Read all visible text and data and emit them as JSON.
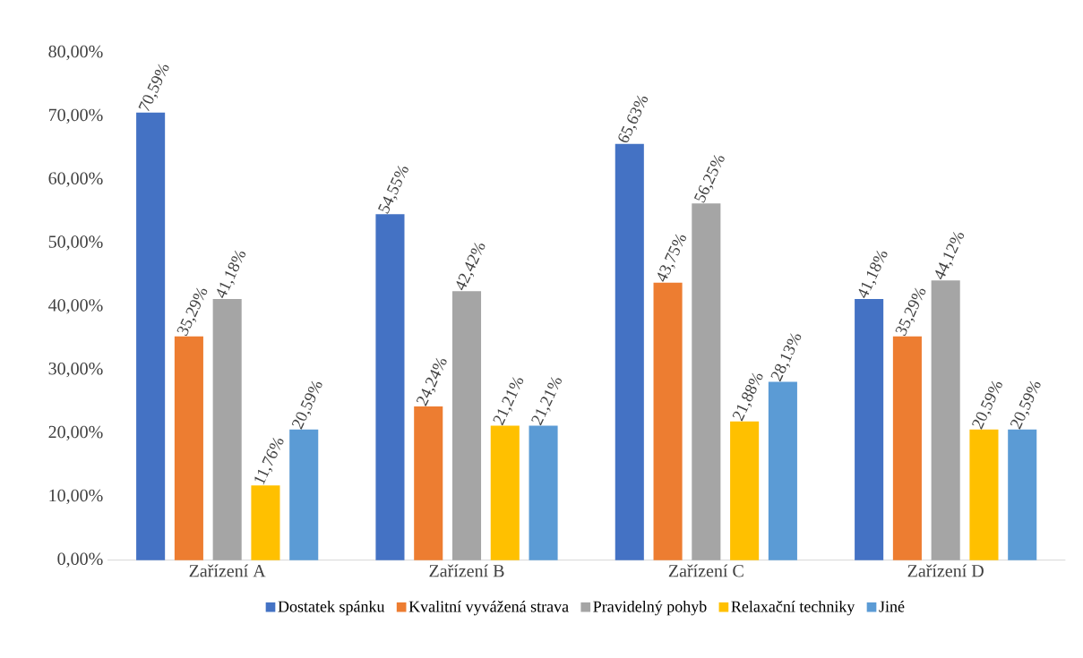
{
  "chart_data": {
    "type": "bar",
    "categories": [
      "Zařízení A",
      "Zařízení B",
      "Zařízení C",
      "Zařízení D"
    ],
    "series": [
      {
        "name": "Dostatek spánku",
        "color": "#4472c4",
        "values": [
          70.59,
          54.55,
          65.63,
          41.18
        ],
        "value_labels": [
          "70,59%",
          "54,55%",
          "65,63%",
          "41,18%"
        ]
      },
      {
        "name": "Kvalitní vyvážená strava",
        "color": "#ed7d31",
        "values": [
          35.29,
          24.24,
          43.75,
          35.29
        ],
        "value_labels": [
          "35,29%",
          "24,24%",
          "43,75%",
          "35,29%"
        ]
      },
      {
        "name": "Pravidelný pohyb",
        "color": "#a5a5a5",
        "values": [
          41.18,
          42.42,
          56.25,
          44.12
        ],
        "value_labels": [
          "41,18%",
          "42,42%",
          "56,25%",
          "44,12%"
        ]
      },
      {
        "name": "Relaxační techniky",
        "color": "#ffc000",
        "values": [
          11.76,
          21.21,
          21.88,
          20.59
        ],
        "value_labels": [
          "11,76%",
          "21,21%",
          "21,88%",
          "20,59%"
        ]
      },
      {
        "name": "Jiné",
        "color": "#5b9bd5",
        "values": [
          20.59,
          21.21,
          28.13,
          20.59
        ],
        "value_labels": [
          "20,59%",
          "21,21%",
          "28,13%",
          "20,59%"
        ]
      }
    ],
    "ylim": [
      0,
      80
    ],
    "yticks": [
      {
        "value": 0,
        "label": "0,00%"
      },
      {
        "value": 10,
        "label": "10,00%"
      },
      {
        "value": 20,
        "label": "20,00%"
      },
      {
        "value": 30,
        "label": "30,00%"
      },
      {
        "value": 40,
        "label": "40,00%"
      },
      {
        "value": 50,
        "label": "50,00%"
      },
      {
        "value": 60,
        "label": "60,00%"
      },
      {
        "value": 70,
        "label": "70,00%"
      },
      {
        "value": 80,
        "label": "80,00%"
      }
    ],
    "legend": "bottom"
  }
}
